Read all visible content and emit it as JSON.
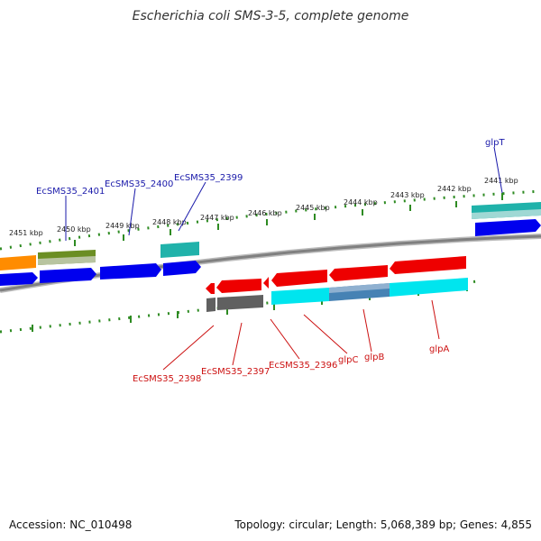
{
  "title": "Escherichia coli SMS-3-5, complete genome",
  "footer": {
    "accession": "Accession: NC_010498",
    "topology": "Topology: circular; Length: 5,068,389 bp; Genes: 4,855"
  },
  "colors": {
    "backbone": "#808080",
    "tick": "#2e8b22",
    "forward_cds": "#0000ee",
    "reverse_cds": "#ee0000",
    "forward_label": "#1a1aaa",
    "reverse_label": "#cc1111",
    "feature_orange": "#ff8c00",
    "feature_olive": "#6b8e23",
    "feature_teal": "#20b2aa",
    "feature_cyan": "#00e5ee",
    "feature_steel": "#4682b4",
    "feature_gray": "#606060"
  },
  "ticks": [
    {
      "label": "2451 kbp"
    },
    {
      "label": "2450 kbp"
    },
    {
      "label": "2449 kbp"
    },
    {
      "label": "2448 kbp"
    },
    {
      "label": "2447 kbp"
    },
    {
      "label": "2446 kbp"
    },
    {
      "label": "2445 kbp"
    },
    {
      "label": "2444 kbp"
    },
    {
      "label": "2443 kbp"
    },
    {
      "label": "2442 kbp"
    },
    {
      "label": "2441 kbp"
    }
  ],
  "forward_labels": [
    "EcSMS35_2401",
    "EcSMS35_2400",
    "EcSMS35_2399",
    "glpT"
  ],
  "reverse_labels": [
    "EcSMS35_2398",
    "EcSMS35_2397",
    "EcSMS35_2396",
    "glpC",
    "glpB",
    "glpA"
  ]
}
